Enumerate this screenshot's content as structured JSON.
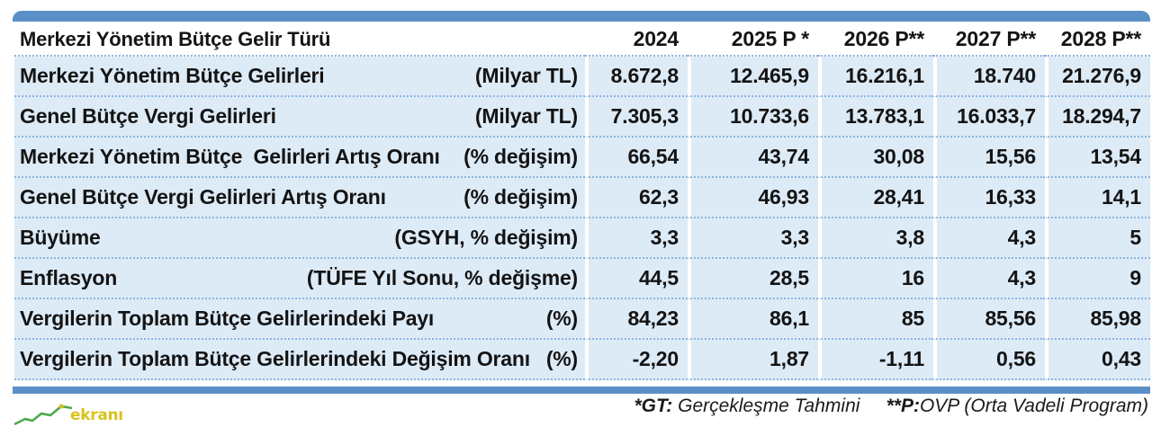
{
  "table": {
    "header": {
      "label": "Merkezi Yönetim Bütçe Gelir Türü",
      "years": [
        "2024",
        "2025 P *",
        "2026 P**",
        "2027 P**",
        "2028 P**"
      ]
    },
    "rows": [
      {
        "label": "Merkezi Yönetim Bütçe Gelirleri",
        "unit": "(Milyar TL)",
        "values": [
          "8.672,8",
          "12.465,9",
          "16.216,1",
          "18.740",
          "21.276,9"
        ]
      },
      {
        "label": "Genel Bütçe Vergi Gelirleri",
        "unit": "(Milyar TL)",
        "values": [
          "7.305,3",
          "10.733,6",
          "13.783,1",
          "16.033,7",
          "18.294,7"
        ]
      },
      {
        "label": "Merkezi Yönetim Bütçe  Gelirleri Artış Oranı",
        "unit": "(% değişim)",
        "values": [
          "66,54",
          "43,74",
          "30,08",
          "15,56",
          "13,54"
        ]
      },
      {
        "label": "Genel Bütçe Vergi Gelirleri Artış Oranı",
        "unit": "(% değişim)",
        "values": [
          "62,3",
          "46,93",
          "28,41",
          "16,33",
          "14,1"
        ]
      },
      {
        "label": "Büyüme",
        "unit": "(GSYH, % değişim)",
        "values": [
          "3,3",
          "3,3",
          "3,8",
          "4,3",
          "5"
        ]
      },
      {
        "label": "Enflasyon",
        "unit": "(TÜFE Yıl Sonu, % değişme)",
        "values": [
          "44,5",
          "28,5",
          "16",
          "4,3",
          "9"
        ]
      },
      {
        "label": "Vergilerin Toplam Bütçe Gelirlerindeki Payı",
        "unit": "(%)",
        "values": [
          "84,23",
          "86,1",
          "85",
          "85,56",
          "85,98"
        ]
      },
      {
        "label": "Vergilerin Toplam Bütçe Gelirlerindeki Değişim Oranı",
        "unit": "(%)",
        "values": [
          "-2,20",
          "1,87",
          "-1,11",
          "0,56",
          "0,43"
        ]
      }
    ]
  },
  "footnote": {
    "gt_key": "*GT:",
    "gt_text": "Gerçekleşme Tahmini",
    "p_key": "**P:",
    "p_text": "OVP (Orta Vadeli Program)"
  },
  "logo": {
    "text": "ekranı"
  }
}
